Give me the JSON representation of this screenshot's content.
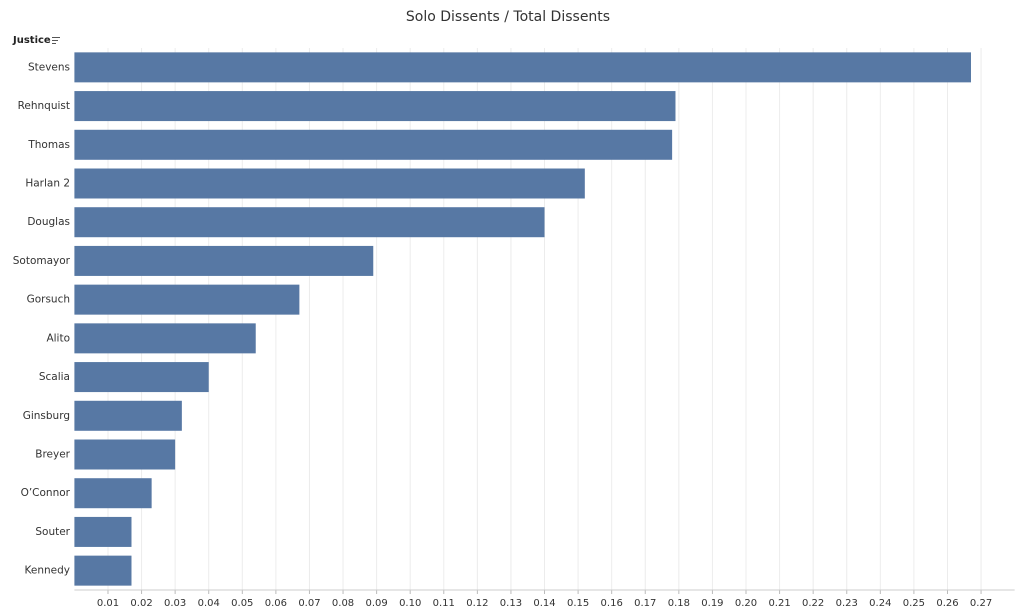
{
  "chart_data": {
    "type": "bar",
    "orientation": "horizontal",
    "title": "Solo Dissents / Total Dissents",
    "y_label": "Justice",
    "categories": [
      "Stevens",
      "Rehnquist",
      "Thomas",
      "Harlan 2",
      "Douglas",
      "Sotomayor",
      "Gorsuch",
      "Alito",
      "Scalia",
      "Ginsburg",
      "Breyer",
      "O’Connor",
      "Souter",
      "Kennedy"
    ],
    "values": [
      0.267,
      0.179,
      0.178,
      0.152,
      0.14,
      0.089,
      0.067,
      0.054,
      0.04,
      0.032,
      0.03,
      0.023,
      0.017,
      0.017
    ],
    "color": "#5778a4",
    "xlim": [
      0,
      0.28
    ],
    "xticks": [
      0.01,
      0.02,
      0.03,
      0.04,
      0.05,
      0.06,
      0.07,
      0.08,
      0.09,
      {
        "value": 0.1,
        "label": "0.10"
      },
      0.11,
      0.12,
      0.13,
      0.14,
      0.15,
      0.16,
      0.17,
      0.18,
      0.19,
      {
        "value": 0.2,
        "label": "0.20"
      },
      0.21,
      0.22,
      0.23,
      0.24,
      0.25,
      0.26,
      0.27
    ],
    "grid": true
  }
}
